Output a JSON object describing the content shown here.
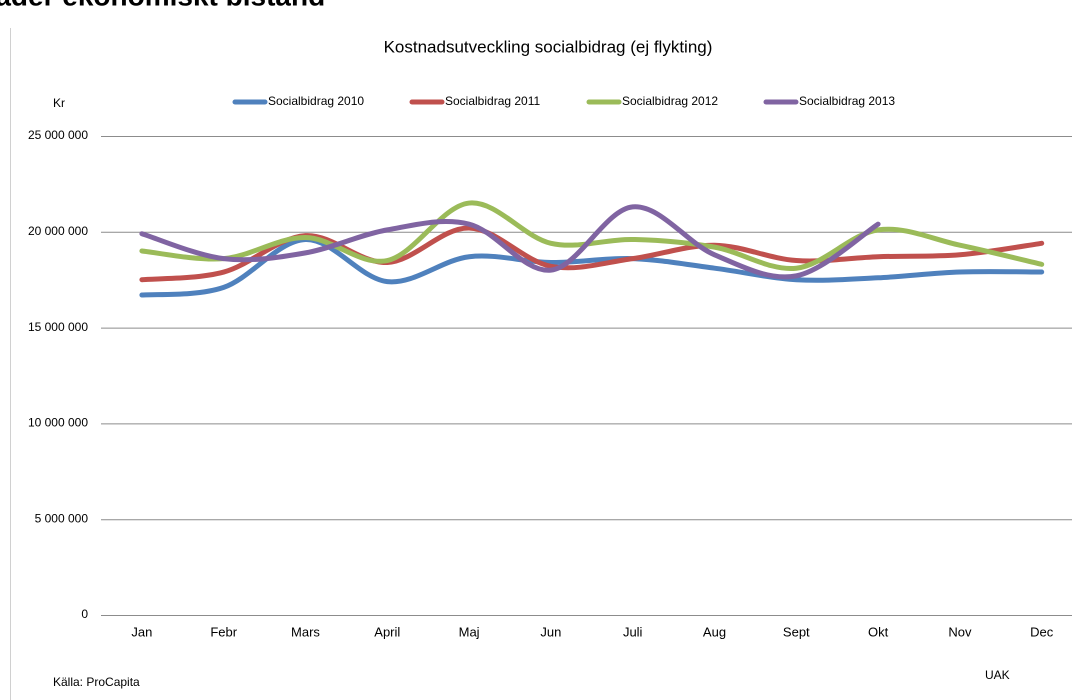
{
  "slide_title": "Kostnader ekonomiskt bistånd",
  "chart_data": {
    "type": "line",
    "title": "Kostnadsutveckling socialbidrag (ej flykting)",
    "y_label": "Kr",
    "source": "Källa: ProCapita",
    "footer": "UAK",
    "categories": [
      "Jan",
      "Febr",
      "Mars",
      "April",
      "Maj",
      "Jun",
      "Juli",
      "Aug",
      "Sept",
      "Okt",
      "Nov",
      "Dec"
    ],
    "series": [
      {
        "name": "Socialbidrag 2010",
        "color": "#4f81bd",
        "values": [
          16700000,
          17100000,
          19600000,
          17400000,
          18700000,
          18400000,
          18600000,
          18100000,
          17500000,
          17600000,
          17900000,
          17900000
        ]
      },
      {
        "name": "Socialbidrag 2011",
        "color": "#c0504d",
        "values": [
          17500000,
          17900000,
          19800000,
          18400000,
          20200000,
          18200000,
          18600000,
          19300000,
          18500000,
          18700000,
          18800000,
          19400000
        ]
      },
      {
        "name": "Socialbidrag 2012",
        "color": "#9bbb59",
        "values": [
          19000000,
          18600000,
          19700000,
          18500000,
          21500000,
          19400000,
          19600000,
          19200000,
          18100000,
          20100000,
          19300000,
          18300000
        ]
      },
      {
        "name": "Socialbidrag 2013",
        "color": "#8064a2",
        "values": [
          19900000,
          18600000,
          18900000,
          20100000,
          20400000,
          18000000,
          21300000,
          18800000,
          17700000,
          20400000,
          null,
          null
        ]
      }
    ],
    "ylim": [
      0,
      25000000
    ],
    "yticks": [
      0,
      {
        "value": 5000000,
        "label": "5 000 000"
      },
      {
        "value": 10000000,
        "label": "10 000 000"
      },
      {
        "value": 15000000,
        "label": "15 000 000"
      },
      {
        "value": 20000000,
        "label": "20 000 000"
      },
      {
        "value": 25000000,
        "label": "25 000 000"
      }
    ],
    "grid": true,
    "legend": "top",
    "smooth": true
  }
}
